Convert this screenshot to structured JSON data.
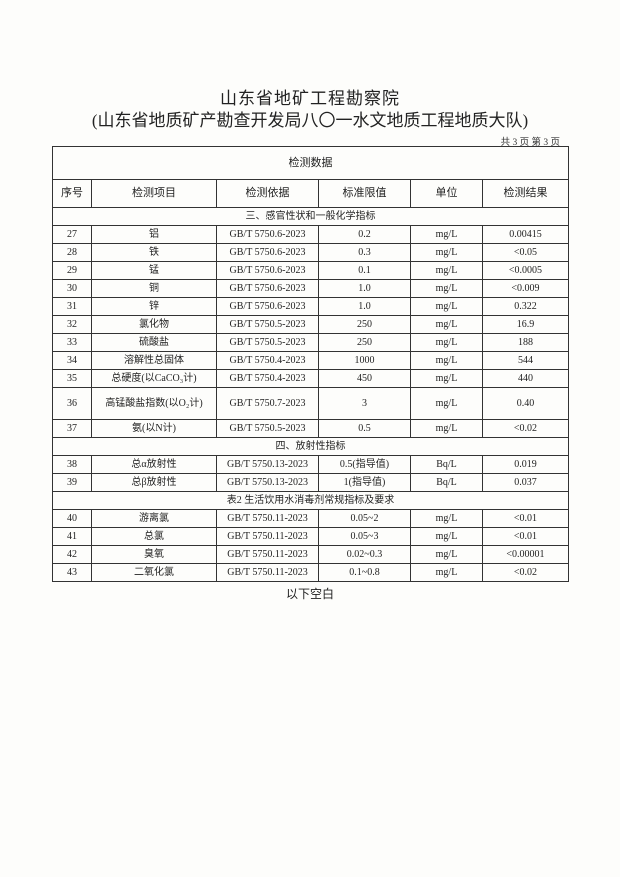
{
  "header": {
    "title": "山东省地矿工程勘察院",
    "subtitle": "(山东省地质矿产勘查开发局八〇一水文地质工程地质大队)",
    "page_info": "共 3 页 第 3 页"
  },
  "table": {
    "caption": "检测数据",
    "columns": [
      "序号",
      "检测项目",
      "检测依据",
      "标准限值",
      "单位",
      "检测结果"
    ],
    "rows": [
      {
        "section": "三、感官性状和一般化学指标"
      },
      {
        "cells": [
          "27",
          "铝",
          "GB/T 5750.6-2023",
          "0.2",
          "mg/L",
          "0.00415"
        ]
      },
      {
        "cells": [
          "28",
          "铁",
          "GB/T 5750.6-2023",
          "0.3",
          "mg/L",
          "<0.05"
        ]
      },
      {
        "cells": [
          "29",
          "锰",
          "GB/T 5750.6-2023",
          "0.1",
          "mg/L",
          "<0.0005"
        ]
      },
      {
        "cells": [
          "30",
          "铜",
          "GB/T 5750.6-2023",
          "1.0",
          "mg/L",
          "<0.009"
        ]
      },
      {
        "cells": [
          "31",
          "锌",
          "GB/T 5750.6-2023",
          "1.0",
          "mg/L",
          "0.322"
        ]
      },
      {
        "cells": [
          "32",
          "氯化物",
          "GB/T 5750.5-2023",
          "250",
          "mg/L",
          "16.9"
        ]
      },
      {
        "cells": [
          "33",
          "硫酸盐",
          "GB/T 5750.5-2023",
          "250",
          "mg/L",
          "188"
        ]
      },
      {
        "cells": [
          "34",
          "溶解性总固体",
          "GB/T 5750.4-2023",
          "1000",
          "mg/L",
          "544"
        ]
      },
      {
        "cells": [
          "35",
          "总硬度(以CaCO₃计)",
          "GB/T 5750.4-2023",
          "450",
          "mg/L",
          "440"
        ]
      },
      {
        "cells": [
          "36",
          "高锰酸盐指数(以O₂计)",
          "GB/T 5750.7-2023",
          "3",
          "mg/L",
          "0.40"
        ],
        "tall": true
      },
      {
        "cells": [
          "37",
          "氨(以N计)",
          "GB/T 5750.5-2023",
          "0.5",
          "mg/L",
          "<0.02"
        ]
      },
      {
        "section": "四、放射性指标"
      },
      {
        "cells": [
          "38",
          "总α放射性",
          "GB/T 5750.13-2023",
          "0.5(指导值)",
          "Bq/L",
          "0.019"
        ]
      },
      {
        "cells": [
          "39",
          "总β放射性",
          "GB/T 5750.13-2023",
          "1(指导值)",
          "Bq/L",
          "0.037"
        ]
      },
      {
        "section": "表2  生活饮用水消毒剂常规指标及要求"
      },
      {
        "cells": [
          "40",
          "游离氯",
          "GB/T 5750.11-2023",
          "0.05~2",
          "mg/L",
          "<0.01"
        ]
      },
      {
        "cells": [
          "41",
          "总氯",
          "GB/T 5750.11-2023",
          "0.05~3",
          "mg/L",
          "<0.01"
        ]
      },
      {
        "cells": [
          "42",
          "臭氧",
          "GB/T 5750.11-2023",
          "0.02~0.3",
          "mg/L",
          "<0.00001"
        ]
      },
      {
        "cells": [
          "43",
          "二氧化氯",
          "GB/T 5750.11-2023",
          "0.1~0.8",
          "mg/L",
          "<0.02"
        ]
      }
    ]
  },
  "footer": {
    "blank_note": "以下空白"
  }
}
